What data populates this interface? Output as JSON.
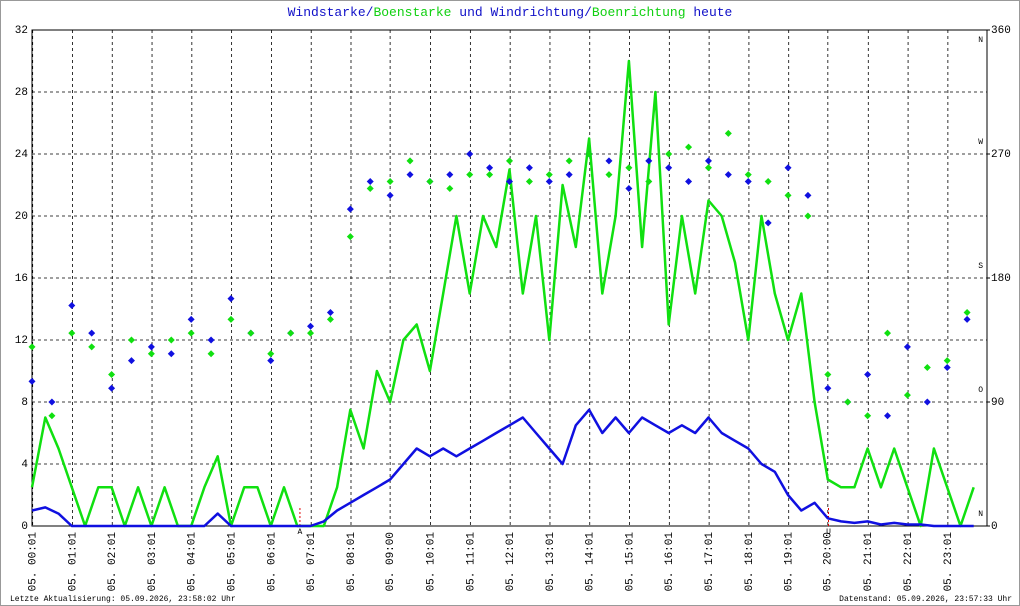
{
  "chart_data": {
    "type": "line",
    "title_parts": [
      {
        "text": "Windstarke",
        "color": "#1010c8"
      },
      {
        "text": "/",
        "color": "#1010c8"
      },
      {
        "text": "Boenstarke",
        "color": "#10d010"
      },
      {
        "text": " und ",
        "color": "#1010c8"
      },
      {
        "text": "Windrichtung",
        "color": "#1010c8"
      },
      {
        "text": "/",
        "color": "#1010c8"
      },
      {
        "text": "Boenrichtung",
        "color": "#10d010"
      },
      {
        "text": " heute",
        "color": "#1010c8"
      }
    ],
    "xlim": [
      "00:00",
      "24:00"
    ],
    "xticks": [
      "05. 00:01",
      "05. 01:01",
      "05. 02:01",
      "05. 03:01",
      "05. 04:01",
      "05. 05:01",
      "05. 06:01",
      "05. 07:01",
      "05. 08:01",
      "05. 09:00",
      "05. 10:01",
      "05. 11:01",
      "05. 12:01",
      "05. 13:01",
      "05. 14:01",
      "05. 15:01",
      "05. 16:01",
      "05. 17:01",
      "05. 18:01",
      "05. 19:01",
      "05. 20:00",
      "05. 21:01",
      "05. 22:01",
      "05. 23:01"
    ],
    "ylim": [
      0,
      32
    ],
    "yticks": [
      0,
      4,
      8,
      12,
      16,
      20,
      24,
      28,
      32
    ],
    "y2lim": [
      0,
      360
    ],
    "y2ticks": [
      0,
      90,
      180,
      270,
      360
    ],
    "y2_compass_labels": [
      "N",
      "O",
      "S",
      "W",
      "N"
    ],
    "grid": true,
    "annotations": [
      {
        "text": "A",
        "x": "06:44",
        "color": "#e00000"
      },
      {
        "text": "U",
        "x": "20:01",
        "color": "#e00000"
      }
    ],
    "footer_left": "Letzte Aktualisierung: 05.09.2026, 23:58:02 Uhr",
    "footer_right": "Datenstand: 05.09.2026, 23:57:33 Uhr",
    "series": [
      {
        "name": "Boenstarke",
        "type": "line",
        "color": "#10e010",
        "x": [
          "00:00",
          "00:20",
          "00:40",
          "01:00",
          "01:20",
          "01:40",
          "02:00",
          "02:20",
          "02:40",
          "03:00",
          "03:20",
          "03:40",
          "04:00",
          "04:20",
          "04:40",
          "05:00",
          "05:20",
          "05:40",
          "06:00",
          "06:20",
          "06:40",
          "07:00",
          "07:20",
          "07:40",
          "08:00",
          "08:20",
          "08:40",
          "09:00",
          "09:20",
          "09:40",
          "10:00",
          "10:20",
          "10:40",
          "11:00",
          "11:20",
          "11:40",
          "12:00",
          "12:20",
          "12:40",
          "13:00",
          "13:20",
          "13:40",
          "14:00",
          "14:20",
          "14:40",
          "15:00",
          "15:20",
          "15:40",
          "16:00",
          "16:20",
          "16:40",
          "17:00",
          "17:20",
          "17:40",
          "18:00",
          "18:20",
          "18:40",
          "19:00",
          "19:20",
          "19:40",
          "20:00",
          "20:20",
          "20:40",
          "21:00",
          "21:20",
          "21:40",
          "22:00",
          "22:20",
          "22:40",
          "23:00",
          "23:20",
          "23:40"
        ],
        "values": [
          2.5,
          7,
          5,
          2.5,
          0,
          2.5,
          2.5,
          0,
          2.5,
          0,
          2.5,
          0,
          0,
          2.5,
          4.5,
          0,
          2.5,
          2.5,
          0,
          2.5,
          0,
          0,
          0,
          2.5,
          7.5,
          5,
          10,
          8,
          12,
          13,
          10,
          15,
          20,
          15,
          20,
          18,
          23,
          15,
          20,
          12,
          22,
          18,
          25,
          15,
          20,
          30,
          18,
          28,
          13,
          20,
          15,
          21,
          20,
          17,
          12,
          20,
          15,
          12,
          15,
          8,
          3,
          2.5,
          2.5,
          5,
          2.5,
          5,
          2.5,
          0,
          5,
          2.5,
          0,
          2.5
        ]
      },
      {
        "name": "Windstarke",
        "type": "line",
        "color": "#1010e0",
        "x": [
          "00:00",
          "00:20",
          "00:40",
          "01:00",
          "01:20",
          "01:40",
          "02:00",
          "02:20",
          "02:40",
          "03:00",
          "03:20",
          "03:40",
          "04:00",
          "04:20",
          "04:40",
          "05:00",
          "05:20",
          "05:40",
          "06:00",
          "06:20",
          "06:40",
          "07:00",
          "07:20",
          "07:40",
          "08:00",
          "08:20",
          "08:40",
          "09:00",
          "09:20",
          "09:40",
          "10:00",
          "10:20",
          "10:40",
          "11:00",
          "11:20",
          "11:40",
          "12:00",
          "12:20",
          "12:40",
          "13:00",
          "13:20",
          "13:40",
          "14:00",
          "14:20",
          "14:40",
          "15:00",
          "15:20",
          "15:40",
          "16:00",
          "16:20",
          "16:40",
          "17:00",
          "17:20",
          "17:40",
          "18:00",
          "18:20",
          "18:40",
          "19:00",
          "19:20",
          "19:40",
          "20:00",
          "20:20",
          "20:40",
          "21:00",
          "21:20",
          "21:40",
          "22:00",
          "22:20",
          "22:40",
          "23:00",
          "23:20",
          "23:40"
        ],
        "values": [
          1,
          1.2,
          0.8,
          0,
          0,
          0,
          0,
          0,
          0,
          0,
          0,
          0,
          0,
          0,
          0.8,
          0,
          0,
          0,
          0,
          0,
          0,
          0,
          0.3,
          1,
          1.5,
          2,
          2.5,
          3,
          4,
          5,
          4.5,
          5,
          4.5,
          5,
          5.5,
          6,
          6.5,
          7,
          6,
          5,
          4,
          6.5,
          7.5,
          6,
          7,
          6,
          7,
          6.5,
          6,
          6.5,
          6,
          7,
          6,
          5.5,
          5,
          4,
          3.5,
          2,
          1,
          1.5,
          0.5,
          0.3,
          0.2,
          0.3,
          0.1,
          0.2,
          0.1,
          0.1,
          0,
          0,
          0,
          0
        ]
      },
      {
        "name": "Windrichtung",
        "type": "scatter",
        "axis": "y2",
        "color": "#1010e0",
        "x": [
          "00:00",
          "00:30",
          "01:00",
          "01:30",
          "02:00",
          "02:30",
          "03:00",
          "03:30",
          "04:00",
          "04:30",
          "05:00",
          "05:30",
          "06:00",
          "06:30",
          "07:00",
          "07:30",
          "08:00",
          "08:30",
          "09:00",
          "09:30",
          "10:00",
          "10:30",
          "11:00",
          "11:30",
          "12:00",
          "12:30",
          "13:00",
          "13:30",
          "14:00",
          "14:30",
          "15:00",
          "15:30",
          "16:00",
          "16:30",
          "17:00",
          "17:30",
          "18:00",
          "18:30",
          "19:00",
          "19:30",
          "20:00",
          "20:30",
          "21:00",
          "21:30",
          "22:00",
          "22:30",
          "23:00",
          "23:30"
        ],
        "values": [
          105,
          90,
          160,
          140,
          100,
          120,
          130,
          125,
          150,
          135,
          165,
          140,
          120,
          140,
          145,
          155,
          230,
          250,
          240,
          255,
          250,
          255,
          270,
          260,
          250,
          260,
          250,
          255,
          270,
          265,
          245,
          265,
          260,
          250,
          265,
          255,
          250,
          220,
          260,
          240,
          100,
          90,
          110,
          80,
          130,
          90,
          115,
          150
        ]
      },
      {
        "name": "Boenrichtung",
        "type": "scatter",
        "axis": "y2",
        "color": "#10e010",
        "x": [
          "00:00",
          "00:30",
          "01:00",
          "01:30",
          "02:00",
          "02:30",
          "03:00",
          "03:30",
          "04:00",
          "04:30",
          "05:00",
          "05:30",
          "06:00",
          "06:30",
          "07:00",
          "07:30",
          "08:00",
          "08:30",
          "09:00",
          "09:30",
          "10:00",
          "10:30",
          "11:00",
          "11:30",
          "12:00",
          "12:30",
          "13:00",
          "13:30",
          "14:00",
          "14:30",
          "15:00",
          "15:30",
          "16:00",
          "16:30",
          "17:00",
          "17:30",
          "18:00",
          "18:30",
          "19:00",
          "19:30",
          "20:00",
          "20:30",
          "21:00",
          "21:30",
          "22:00",
          "22:30",
          "23:00",
          "23:30"
        ],
        "values": [
          130,
          80,
          140,
          130,
          110,
          135,
          125,
          135,
          140,
          125,
          150,
          140,
          125,
          140,
          140,
          150,
          210,
          245,
          250,
          265,
          250,
          245,
          255,
          255,
          265,
          250,
          255,
          265,
          270,
          255,
          260,
          250,
          270,
          275,
          260,
          285,
          255,
          250,
          240,
          225,
          110,
          90,
          80,
          140,
          95,
          115,
          120,
          155
        ]
      }
    ]
  }
}
